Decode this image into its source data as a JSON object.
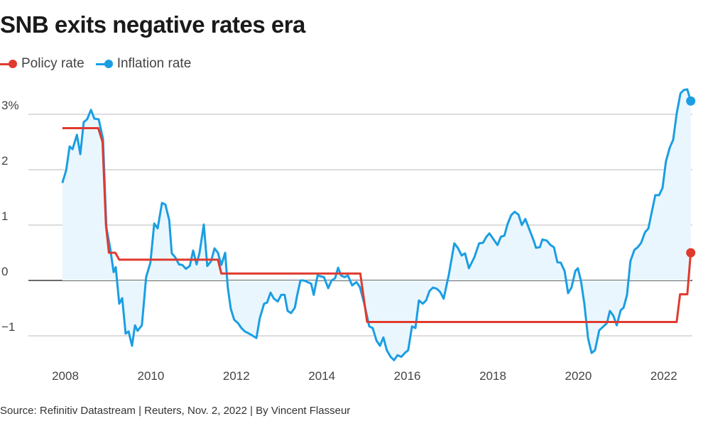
{
  "title": "SNB exits negative rates era",
  "source": "Source: Refinitiv Datastream | Reuters, Nov. 2, 2022 | By Vincent Flasseur",
  "chart_data": {
    "type": "line",
    "title": "SNB exits negative rates era",
    "xlabel": "",
    "ylabel": "",
    "xlim": [
      2007.8,
      2022.75
    ],
    "ylim": [
      -1.5,
      3.6
    ],
    "x_ticks": [
      2008,
      2010,
      2012,
      2014,
      2016,
      2018,
      2020,
      2022
    ],
    "x_tick_labels": [
      "2008",
      "2010",
      "2012",
      "2014",
      "2016",
      "2018",
      "2020",
      "2022"
    ],
    "y_ticks": [
      3,
      2,
      1,
      0,
      -1
    ],
    "y_tick_labels": [
      "3%",
      "2",
      "1",
      "0",
      "−1"
    ],
    "grid": true,
    "legend_placement": "top-left",
    "series": [
      {
        "name": "Policy rate",
        "color": "#e03a2f",
        "step": true,
        "points": [
          [
            2007.93,
            2.75
          ],
          [
            2008.77,
            2.75
          ],
          [
            2008.87,
            2.5
          ],
          [
            2008.95,
            1.0
          ],
          [
            2009.02,
            0.5
          ],
          [
            2009.17,
            0.5
          ],
          [
            2009.26,
            0.375
          ],
          [
            2011.57,
            0.375
          ],
          [
            2011.65,
            0.125
          ],
          [
            2014.9,
            0.125
          ],
          [
            2015.06,
            -0.75
          ],
          [
            2022.3,
            -0.75
          ],
          [
            2022.38,
            -0.25
          ],
          [
            2022.55,
            -0.25
          ],
          [
            2022.63,
            0.5
          ]
        ]
      },
      {
        "name": "Inflation rate",
        "color": "#1a9ee3",
        "fill": "#eaf6fd",
        "points": [
          [
            2007.93,
            1.76
          ],
          [
            2008.02,
            1.99
          ],
          [
            2008.1,
            2.42
          ],
          [
            2008.17,
            2.37
          ],
          [
            2008.27,
            2.63
          ],
          [
            2008.35,
            2.28
          ],
          [
            2008.43,
            2.86
          ],
          [
            2008.51,
            2.91
          ],
          [
            2008.6,
            3.08
          ],
          [
            2008.68,
            2.92
          ],
          [
            2008.78,
            2.91
          ],
          [
            2008.88,
            2.56
          ],
          [
            2008.96,
            0.96
          ],
          [
            2009.05,
            0.58
          ],
          [
            2009.13,
            0.15
          ],
          [
            2009.18,
            0.24
          ],
          [
            2009.26,
            -0.42
          ],
          [
            2009.33,
            -0.32
          ],
          [
            2009.41,
            -0.96
          ],
          [
            2009.48,
            -0.92
          ],
          [
            2009.56,
            -1.18
          ],
          [
            2009.63,
            -0.81
          ],
          [
            2009.69,
            -0.91
          ],
          [
            2009.79,
            -0.81
          ],
          [
            2009.89,
            0.06
          ],
          [
            2009.99,
            0.32
          ],
          [
            2010.08,
            1.03
          ],
          [
            2010.16,
            0.94
          ],
          [
            2010.26,
            1.4
          ],
          [
            2010.34,
            1.37
          ],
          [
            2010.43,
            1.09
          ],
          [
            2010.49,
            0.49
          ],
          [
            2010.57,
            0.42
          ],
          [
            2010.66,
            0.29
          ],
          [
            2010.74,
            0.28
          ],
          [
            2010.82,
            0.21
          ],
          [
            2010.91,
            0.26
          ],
          [
            2010.99,
            0.54
          ],
          [
            2011.07,
            0.29
          ],
          [
            2011.14,
            0.5
          ],
          [
            2011.24,
            1.01
          ],
          [
            2011.32,
            0.26
          ],
          [
            2011.41,
            0.35
          ],
          [
            2011.49,
            0.58
          ],
          [
            2011.57,
            0.5
          ],
          [
            2011.65,
            0.28
          ],
          [
            2011.74,
            0.5
          ],
          [
            2011.8,
            -0.13
          ],
          [
            2011.87,
            -0.51
          ],
          [
            2011.95,
            -0.71
          ],
          [
            2012.04,
            -0.77
          ],
          [
            2012.12,
            -0.86
          ],
          [
            2012.2,
            -0.92
          ],
          [
            2012.3,
            -0.96
          ],
          [
            2012.47,
            -1.04
          ],
          [
            2012.55,
            -0.68
          ],
          [
            2012.65,
            -0.42
          ],
          [
            2012.72,
            -0.4
          ],
          [
            2012.8,
            -0.22
          ],
          [
            2012.88,
            -0.33
          ],
          [
            2012.97,
            -0.38
          ],
          [
            2013.05,
            -0.26
          ],
          [
            2013.13,
            -0.26
          ],
          [
            2013.2,
            -0.55
          ],
          [
            2013.28,
            -0.59
          ],
          [
            2013.37,
            -0.49
          ],
          [
            2013.42,
            -0.28
          ],
          [
            2013.5,
            0.0
          ],
          [
            2013.58,
            0.0
          ],
          [
            2013.7,
            -0.04
          ],
          [
            2013.75,
            -0.06
          ],
          [
            2013.81,
            -0.26
          ],
          [
            2013.9,
            0.09
          ],
          [
            2014.05,
            0.06
          ],
          [
            2014.15,
            -0.14
          ],
          [
            2014.23,
            0.0
          ],
          [
            2014.31,
            0.04
          ],
          [
            2014.38,
            0.23
          ],
          [
            2014.45,
            0.09
          ],
          [
            2014.53,
            0.06
          ],
          [
            2014.61,
            0.09
          ],
          [
            2014.71,
            -0.09
          ],
          [
            2014.81,
            -0.03
          ],
          [
            2014.89,
            -0.12
          ],
          [
            2014.99,
            -0.41
          ],
          [
            2015.11,
            -0.83
          ],
          [
            2015.19,
            -0.86
          ],
          [
            2015.28,
            -1.09
          ],
          [
            2015.36,
            -1.18
          ],
          [
            2015.44,
            -1.03
          ],
          [
            2015.52,
            -1.26
          ],
          [
            2015.61,
            -1.38
          ],
          [
            2015.69,
            -1.44
          ],
          [
            2015.77,
            -1.35
          ],
          [
            2015.86,
            -1.38
          ],
          [
            2015.94,
            -1.31
          ],
          [
            2016.02,
            -1.26
          ],
          [
            2016.11,
            -0.83
          ],
          [
            2016.19,
            -0.86
          ],
          [
            2016.27,
            -0.36
          ],
          [
            2016.36,
            -0.42
          ],
          [
            2016.44,
            -0.36
          ],
          [
            2016.52,
            -0.19
          ],
          [
            2016.6,
            -0.13
          ],
          [
            2016.69,
            -0.15
          ],
          [
            2016.77,
            -0.21
          ],
          [
            2016.85,
            -0.33
          ],
          [
            2016.97,
            0.1
          ],
          [
            2017.1,
            0.67
          ],
          [
            2017.19,
            0.58
          ],
          [
            2017.27,
            0.45
          ],
          [
            2017.35,
            0.49
          ],
          [
            2017.44,
            0.22
          ],
          [
            2017.57,
            0.42
          ],
          [
            2017.68,
            0.67
          ],
          [
            2017.77,
            0.68
          ],
          [
            2017.85,
            0.79
          ],
          [
            2017.92,
            0.85
          ],
          [
            2018.02,
            0.74
          ],
          [
            2018.11,
            0.64
          ],
          [
            2018.19,
            0.79
          ],
          [
            2018.27,
            0.81
          ],
          [
            2018.35,
            1.03
          ],
          [
            2018.43,
            1.18
          ],
          [
            2018.51,
            1.24
          ],
          [
            2018.6,
            1.19
          ],
          [
            2018.68,
            1.0
          ],
          [
            2018.76,
            1.11
          ],
          [
            2018.88,
            0.87
          ],
          [
            2018.96,
            0.71
          ],
          [
            2019.01,
            0.59
          ],
          [
            2019.1,
            0.6
          ],
          [
            2019.16,
            0.74
          ],
          [
            2019.26,
            0.72
          ],
          [
            2019.35,
            0.64
          ],
          [
            2019.43,
            0.6
          ],
          [
            2019.51,
            0.33
          ],
          [
            2019.59,
            0.32
          ],
          [
            2019.68,
            0.17
          ],
          [
            2019.76,
            -0.23
          ],
          [
            2019.84,
            -0.13
          ],
          [
            2019.93,
            0.17
          ],
          [
            2019.99,
            0.22
          ],
          [
            2020.06,
            0.0
          ],
          [
            2020.14,
            -0.41
          ],
          [
            2020.23,
            -1.05
          ],
          [
            2020.31,
            -1.31
          ],
          [
            2020.39,
            -1.26
          ],
          [
            2020.49,
            -0.9
          ],
          [
            2020.59,
            -0.83
          ],
          [
            2020.67,
            -0.77
          ],
          [
            2020.74,
            -0.55
          ],
          [
            2020.82,
            -0.64
          ],
          [
            2020.9,
            -0.81
          ],
          [
            2020.99,
            -0.54
          ],
          [
            2021.06,
            -0.49
          ],
          [
            2021.14,
            -0.26
          ],
          [
            2021.22,
            0.35
          ],
          [
            2021.31,
            0.55
          ],
          [
            2021.39,
            0.6
          ],
          [
            2021.47,
            0.68
          ],
          [
            2021.56,
            0.87
          ],
          [
            2021.64,
            0.94
          ],
          [
            2021.72,
            1.24
          ],
          [
            2021.8,
            1.54
          ],
          [
            2021.89,
            1.54
          ],
          [
            2021.97,
            1.67
          ],
          [
            2022.05,
            2.15
          ],
          [
            2022.14,
            2.4
          ],
          [
            2022.22,
            2.54
          ],
          [
            2022.3,
            3.01
          ],
          [
            2022.39,
            3.38
          ],
          [
            2022.47,
            3.44
          ],
          [
            2022.55,
            3.45
          ],
          [
            2022.63,
            3.24
          ]
        ]
      }
    ]
  }
}
